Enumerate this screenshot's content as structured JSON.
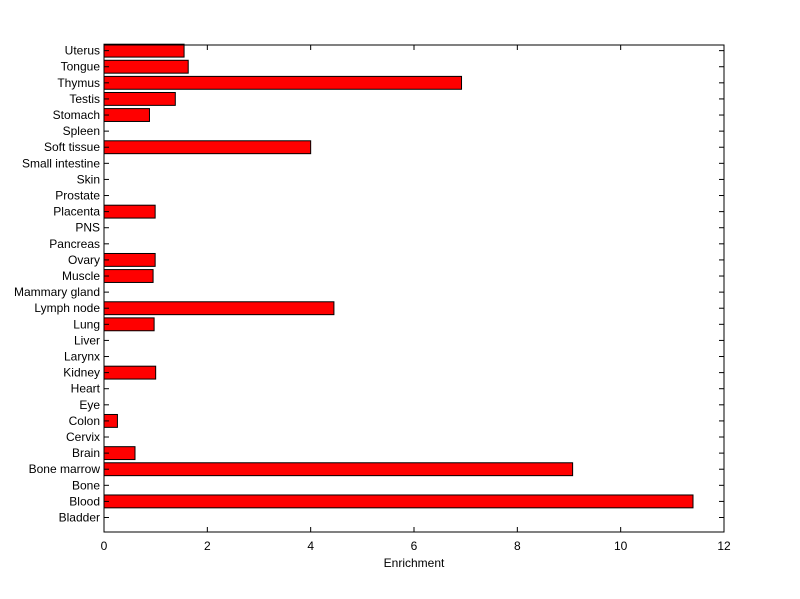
{
  "chart_data": {
    "type": "bar",
    "orientation": "horizontal",
    "title": "",
    "xlabel": "Enrichment",
    "ylabel": "",
    "xlim": [
      0,
      12
    ],
    "xticks": [
      0,
      2,
      4,
      6,
      8,
      10,
      12
    ],
    "grid": false,
    "legend": "none",
    "bar_color": "#ff0000",
    "bar_edge_color": "#000000",
    "categories": [
      "Bladder",
      "Blood",
      "Bone",
      "Bone marrow",
      "Brain",
      "Cervix",
      "Colon",
      "Eye",
      "Heart",
      "Kidney",
      "Larynx",
      "Liver",
      "Lung",
      "Lymph node",
      "Mammary gland",
      "Muscle",
      "Ovary",
      "Pancreas",
      "PNS",
      "Placenta",
      "Prostate",
      "Skin",
      "Small intestine",
      "Soft tissue",
      "Spleen",
      "Stomach",
      "Testis",
      "Thymus",
      "Tongue",
      "Uterus"
    ],
    "values": [
      0,
      11.4,
      0,
      9.07,
      0.6,
      0,
      0.26,
      0,
      0,
      1.0,
      0,
      0,
      0.97,
      4.45,
      0,
      0.95,
      0.99,
      0,
      0,
      0.99,
      0,
      0,
      0,
      4.0,
      0,
      0.88,
      1.38,
      6.92,
      1.63,
      1.55
    ]
  }
}
